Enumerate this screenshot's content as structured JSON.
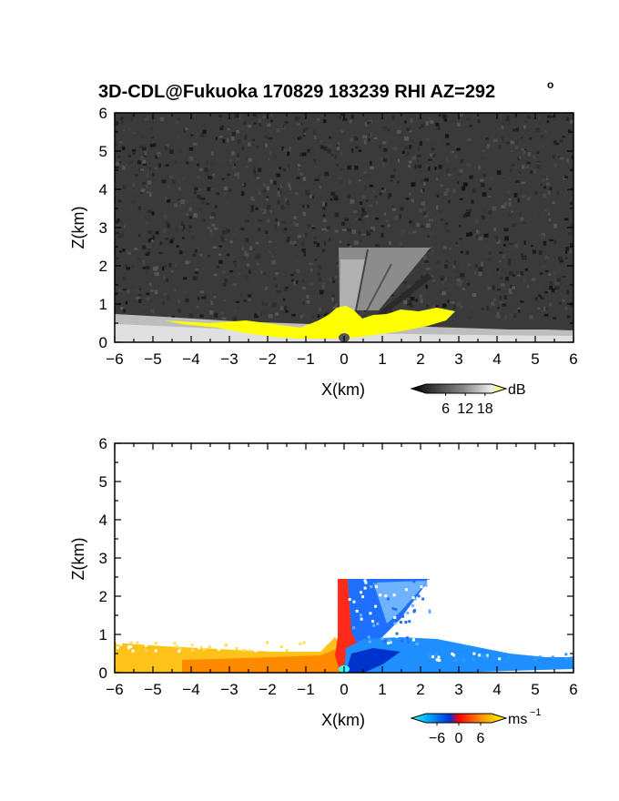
{
  "chart_data": [
    {
      "type": "heatmap",
      "title": "3D-CDL@Fukuoka 170829 183239 RHI AZ=292",
      "title_superscript": "o",
      "xlabel": "X(km)",
      "ylabel": "Z(km)",
      "xlim": [
        -6,
        6
      ],
      "ylim": [
        0,
        6
      ],
      "x_ticks": [
        "-6",
        "-5",
        "-4",
        "-3",
        "-2",
        "-1",
        "0",
        "1",
        "2",
        "3",
        "4",
        "5",
        "6"
      ],
      "y_ticks": [
        "0",
        "1",
        "2",
        "3",
        "4",
        "5",
        "6"
      ],
      "quantity": "signal intensity",
      "colorbar": {
        "unit": "dB",
        "ticks": [
          "6",
          "12",
          "18"
        ],
        "range": [
          0,
          20
        ],
        "colormap": "grayscale-to-yellow"
      },
      "colors": {
        "background_noise": "#3a3a3a",
        "strong_echo": "#ffff00"
      }
    },
    {
      "type": "heatmap",
      "xlabel": "X(km)",
      "ylabel": "Z(km)",
      "xlim": [
        -6,
        6
      ],
      "ylim": [
        0,
        6
      ],
      "x_ticks": [
        "-6",
        "-5",
        "-4",
        "-3",
        "-2",
        "-1",
        "0",
        "1",
        "2",
        "3",
        "4",
        "5",
        "6"
      ],
      "y_ticks": [
        "0",
        "1",
        "2",
        "3",
        "4",
        "5",
        "6"
      ],
      "quantity": "radial velocity",
      "colorbar": {
        "unit": "ms",
        "unit_superscript": "−1",
        "ticks": [
          "−6",
          "0",
          "6"
        ],
        "range": [
          -9,
          9
        ],
        "colormap": "cyan-blue-red-yellow"
      },
      "colors": {
        "negative": "#1f7fff",
        "near_zero": "#ff2a1a",
        "positive": "#ffb000"
      }
    }
  ]
}
